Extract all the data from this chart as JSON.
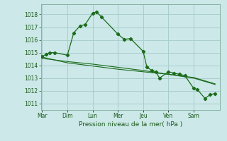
{
  "xlabel": "Pression niveau de la mer( hPa )",
  "background_color": "#cce8e8",
  "grid_color": "#aacece",
  "line_color": "#1a6b1a",
  "ylim": [
    1010.5,
    1018.8
  ],
  "yticks": [
    1011,
    1012,
    1013,
    1014,
    1015,
    1016,
    1017,
    1018
  ],
  "x_labels": [
    "Mar",
    "Dim",
    "Lun",
    "Mer",
    "Jeu",
    "Ven",
    "Sam"
  ],
  "x_positions": [
    0,
    1,
    2,
    3,
    4,
    5,
    6
  ],
  "series1": [
    [
      0.0,
      1014.7
    ],
    [
      0.15,
      1014.85
    ],
    [
      0.3,
      1015.0
    ],
    [
      0.5,
      1015.0
    ],
    [
      1.0,
      1014.8
    ],
    [
      1.25,
      1016.55
    ],
    [
      1.5,
      1017.1
    ],
    [
      1.7,
      1017.2
    ],
    [
      2.0,
      1018.1
    ],
    [
      2.15,
      1018.2
    ],
    [
      2.35,
      1017.8
    ],
    [
      3.0,
      1016.45
    ],
    [
      3.25,
      1016.05
    ],
    [
      3.5,
      1016.1
    ],
    [
      4.0,
      1015.1
    ],
    [
      4.15,
      1013.85
    ],
    [
      4.35,
      1013.6
    ],
    [
      4.5,
      1013.5
    ],
    [
      4.65,
      1013.0
    ],
    [
      5.0,
      1013.5
    ],
    [
      5.2,
      1013.4
    ],
    [
      5.45,
      1013.3
    ],
    [
      5.65,
      1013.2
    ],
    [
      6.0,
      1012.2
    ],
    [
      6.15,
      1012.1
    ],
    [
      6.45,
      1011.4
    ],
    [
      6.65,
      1011.7
    ],
    [
      6.85,
      1011.8
    ]
  ],
  "series2": [
    [
      0.0,
      1014.65
    ],
    [
      1.0,
      1014.2
    ],
    [
      2.0,
      1013.95
    ],
    [
      3.0,
      1013.7
    ],
    [
      4.0,
      1013.5
    ],
    [
      5.0,
      1013.3
    ],
    [
      6.0,
      1013.05
    ],
    [
      6.85,
      1012.55
    ]
  ],
  "series3": [
    [
      0.0,
      1014.55
    ],
    [
      1.0,
      1014.3
    ],
    [
      2.0,
      1014.1
    ],
    [
      3.0,
      1013.85
    ],
    [
      4.0,
      1013.6
    ],
    [
      5.0,
      1013.3
    ],
    [
      6.0,
      1013.0
    ],
    [
      6.85,
      1012.5
    ]
  ]
}
